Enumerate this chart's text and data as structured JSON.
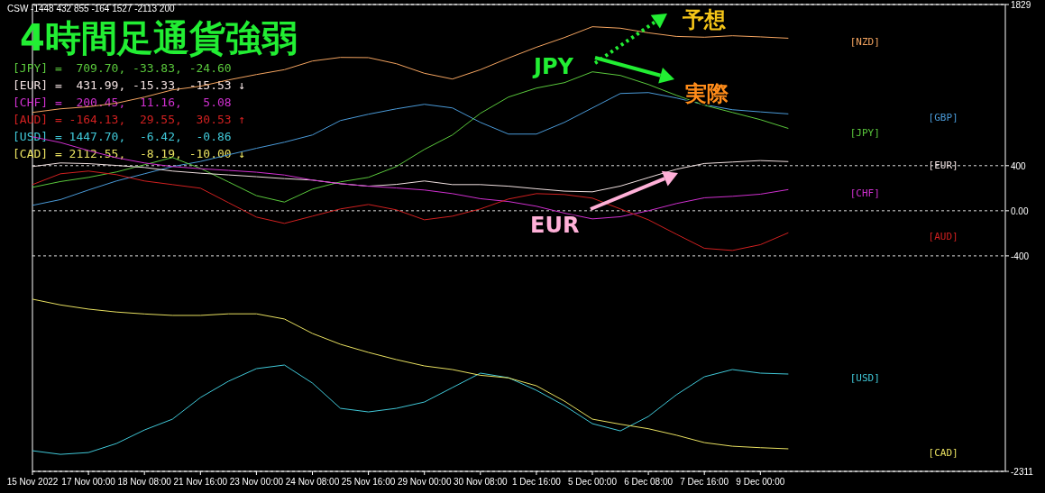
{
  "chart_data": {
    "type": "line",
    "title": "4時間足通貨強弱",
    "annotations": [
      "CSW -1448 432 855 -164 1527 -2113 200",
      "[JPY] =  709.70, -33.83, -24.60",
      "[EUR] =  431.99, -15.33, -15.53 ↓",
      "[CHF] =  200.45,  11.16,   5.08",
      "[AUD] = -164.13,  29.55,  30.53 ↑",
      "[USD] = 1447.70,  -6.42,  -0.86",
      "[CAD] = 2112.55,  -8.19, -10.00 ↓",
      "予想",
      "実際",
      "JPY",
      "EUR"
    ],
    "categories": [
      "15 Nov 2022",
      null,
      "17 Nov 00:00",
      null,
      "18 Nov 08:00",
      null,
      "21 Nov 16:00",
      null,
      "23 Nov 00:00",
      null,
      "24 Nov 08:00",
      null,
      "25 Nov 16:00",
      null,
      "29 Nov 00:00",
      null,
      "30 Nov 08:00",
      null,
      "1 Dec 16:00",
      null,
      "5 Dec 00:00",
      null,
      "6 Dec 08:00",
      null,
      "7 Dec 16:00",
      null,
      "9 Dec 00:00",
      null,
      null,
      null,
      null,
      null,
      null,
      null,
      null
    ],
    "ylim": [
      -2311,
      1829
    ],
    "yticks": [
      1829,
      400,
      {
        "value": 0,
        "label": "0.00"
      },
      -400,
      -2311
    ],
    "grid": "y",
    "series": [
      {
        "name": "[NZD]",
        "color": "#f4a460",
        "values": [
          872,
          904,
          922,
          954,
          1008,
          1072,
          1104,
          1160,
          1208,
          1251,
          1328,
          1360,
          1358,
          1304,
          1219,
          1168,
          1251,
          1354,
          1450,
          1536,
          1632,
          1619,
          1578,
          1546,
          1539,
          1552,
          1542,
          1530,
          null,
          null,
          null,
          null,
          null,
          null,
          null
        ]
      },
      {
        "name": "[GBP]",
        "color": "#4a9ad8",
        "values": [
          48,
          99,
          184,
          264,
          328,
          392,
          437,
          496,
          554,
          608,
          672,
          800,
          856,
          904,
          944,
          912,
          784,
          680,
          680,
          784,
          912,
          1040,
          1048,
          1000,
          941,
          896,
          877,
          859,
          null,
          null,
          null,
          null,
          null,
          null,
          null
        ]
      },
      {
        "name": "[JPY]",
        "color": "#5ac83c",
        "values": [
          208,
          259,
          296,
          344,
          408,
          472,
          376,
          256,
          134,
          77,
          192,
          256,
          296,
          392,
          544,
          672,
          864,
          1008,
          1088,
          1136,
          1232,
          1200,
          1120,
          1024,
          936,
          872,
          808,
          730,
          null,
          null,
          null,
          null,
          null,
          null,
          null
        ]
      },
      {
        "name": "[EUR]",
        "color": "#f0e0e0",
        "values": [
          392,
          424,
          418,
          402,
          384,
          352,
          333,
          318,
          302,
          285,
          272,
          240,
          218,
          234,
          264,
          232,
          232,
          218,
          195,
          174,
          168,
          219,
          294,
          368,
          419,
          432,
          445,
          436,
          null,
          null,
          null,
          null,
          null,
          null,
          null
        ]
      },
      {
        "name": "[CHF]",
        "color": "#d030d0",
        "values": [
          656,
          605,
          534,
          470,
          424,
          392,
          373,
          358,
          342,
          317,
          272,
          240,
          218,
          202,
          184,
          152,
          107,
          82,
          40,
          -21,
          -72,
          -53,
          0,
          64,
          115,
          128,
          147,
          188,
          null,
          null,
          null,
          null,
          null,
          null,
          null
        ]
      },
      {
        "name": "[AUD]",
        "color": "#d02020",
        "values": [
          232,
          328,
          352,
          320,
          264,
          232,
          200,
          72,
          -56,
          -112,
          -48,
          16,
          56,
          8,
          -80,
          -48,
          16,
          104,
          152,
          144,
          112,
          16,
          -80,
          -208,
          -333,
          -352,
          -301,
          -195,
          null,
          null,
          null,
          null,
          null,
          null,
          null
        ]
      },
      {
        "name": "[USD]",
        "color": "#40c8d8",
        "values": [
          -2128,
          -2160,
          -2144,
          -2064,
          -1944,
          -1848,
          -1656,
          -1512,
          -1400,
          -1368,
          -1528,
          -1752,
          -1784,
          -1752,
          -1696,
          -1568,
          -1440,
          -1480,
          -1592,
          -1728,
          -1888,
          -1952,
          -1824,
          -1632,
          -1472,
          -1408,
          -1440,
          -1448,
          null,
          null,
          null,
          null,
          null,
          null,
          null
        ]
      },
      {
        "name": "[CAD]",
        "color": "#e8e060",
        "values": [
          -784,
          -835,
          -872,
          -898,
          -915,
          -928,
          -928,
          -914,
          -914,
          -960,
          -1088,
          -1184,
          -1256,
          -1320,
          -1376,
          -1408,
          -1459,
          -1482,
          -1552,
          -1688,
          -1848,
          -1893,
          -1933,
          -1990,
          -2056,
          -2088,
          -2101,
          -2111,
          null,
          null,
          null,
          null,
          null,
          null,
          null
        ]
      }
    ]
  }
}
